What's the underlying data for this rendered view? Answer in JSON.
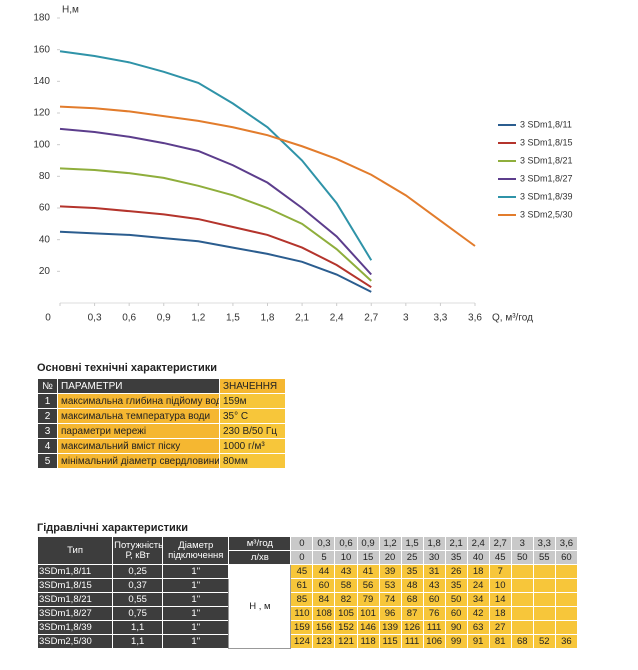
{
  "chart_data": {
    "type": "line",
    "y_label": "Н,м",
    "x_label": "Q, м³/год",
    "x": [
      0,
      0.3,
      0.6,
      0.9,
      1.2,
      1.5,
      1.8,
      2.1,
      2.4,
      2.7,
      3,
      3.3,
      3.6
    ],
    "xlim": [
      0,
      3.6
    ],
    "xticks": [
      0,
      {
        "value": 0.3,
        "label": "0,3"
      },
      {
        "value": 0.6,
        "label": "0,6"
      },
      {
        "value": 0.9,
        "label": "0,9"
      },
      {
        "value": 1.2,
        "label": "1,2"
      },
      {
        "value": 1.5,
        "label": "1,5"
      },
      {
        "value": 1.8,
        "label": "1,8"
      },
      {
        "value": 2.1,
        "label": "2,1"
      },
      {
        "value": 2.4,
        "label": "2,4"
      },
      {
        "value": 2.7,
        "label": "2,7"
      },
      3,
      {
        "value": 3.3,
        "label": "3,3"
      },
      {
        "value": 3.6,
        "label": "3,6"
      }
    ],
    "ylim": [
      0,
      180
    ],
    "yticks": [
      20,
      40,
      60,
      80,
      100,
      120,
      140,
      160,
      180
    ],
    "legend": "right",
    "series": [
      {
        "name": "3 SDm1,8/11",
        "color": "#2b5d8f",
        "values": [
          45,
          44,
          43,
          41,
          39,
          35,
          31,
          26,
          18,
          7,
          null,
          null,
          null
        ]
      },
      {
        "name": "3 SDm1,8/15",
        "color": "#b4342c",
        "values": [
          61,
          60,
          58,
          56,
          53,
          48,
          43,
          35,
          24,
          10,
          null,
          null,
          null
        ]
      },
      {
        "name": "3 SDm1,8/21",
        "color": "#8fae3c",
        "values": [
          85,
          84,
          82,
          79,
          74,
          68,
          60,
          50,
          34,
          14,
          null,
          null,
          null
        ]
      },
      {
        "name": "3 SDm1,8/27",
        "color": "#5c3d8c",
        "values": [
          110,
          108,
          105,
          101,
          96,
          87,
          76,
          60,
          42,
          18,
          null,
          null,
          null
        ]
      },
      {
        "name": "3 SDm1,8/39",
        "color": "#2f93a8",
        "values": [
          159,
          156,
          152,
          146,
          139,
          126,
          111,
          90,
          63,
          27,
          null,
          null,
          null
        ]
      },
      {
        "name": "3 SDm2,5/30",
        "color": "#e27c2c",
        "values": [
          124,
          123,
          121,
          118,
          115,
          111,
          106,
          99,
          91,
          81,
          68,
          52,
          36
        ]
      }
    ]
  },
  "specs": {
    "title": "Основні технічні характеристики",
    "header": [
      "№",
      "ПАРАМЕТРИ",
      "ЗНАЧЕННЯ"
    ],
    "rows": [
      [
        "1",
        "максимальна глибина підйому води",
        "159м"
      ],
      [
        "2",
        "максимальна температура води",
        "35° C"
      ],
      [
        "3",
        "параметри мережі",
        "230 В/50 Гц"
      ],
      [
        "4",
        "максимальний вміст піску",
        "1000 г/м³"
      ],
      [
        "5",
        "мінімальний діаметр свердловини",
        "80мм"
      ]
    ]
  },
  "hydraulics": {
    "title": "Гідравлічні характеристики",
    "headers": {
      "type": "Тип",
      "power": "Потужність Р, кВт",
      "diameter": "Діаметр підключення",
      "flow_m3": "м³/год",
      "flow_l": "л/хв",
      "head": "Н , м"
    },
    "l_per_min": [
      0,
      5,
      10,
      15,
      20,
      25,
      30,
      35,
      40,
      45,
      50,
      55,
      60
    ],
    "rows": [
      [
        "3SDm1,8/11",
        "0,25",
        "1\""
      ],
      [
        "3SDm1,8/15",
        "0,37",
        "1\""
      ],
      [
        "3SDm1,8/21",
        "0,55",
        "1\""
      ],
      [
        "3SDm1,8/27",
        "0,75",
        "1\""
      ],
      [
        "3SDm1,8/39",
        "1,1",
        "1\""
      ],
      [
        "3SDm2,5/30",
        "1,1",
        "1\""
      ]
    ]
  }
}
